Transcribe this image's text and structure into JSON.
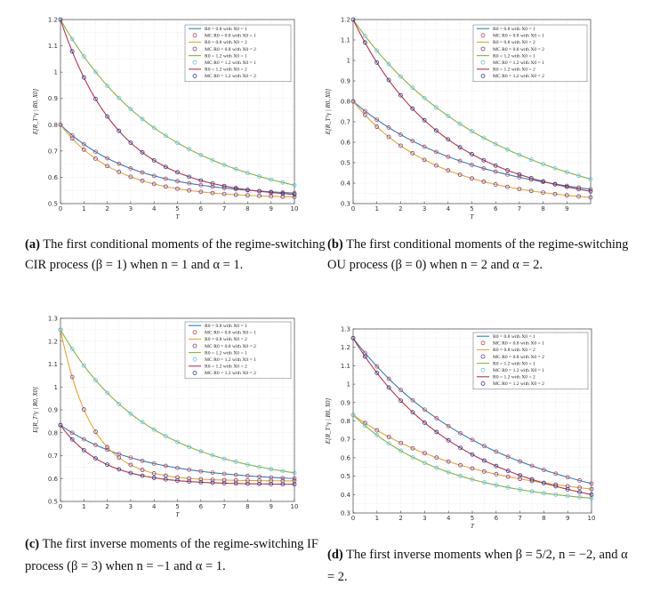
{
  "figure": {
    "colors": {
      "blue": "#2f7ec0",
      "orange": "#e6a531",
      "green": "#86b33f",
      "purple": "#7a3a8f",
      "cyan": "#5cc5e0",
      "crimson": "#b5334a",
      "navy": "#263a8a",
      "red_marker": "#c8444e",
      "grid": "#e3e3e3"
    },
    "legend": [
      "R0 = 0.8 with X0 = 1",
      "MC R0 = 0.8 with X0 = 1",
      "R0 = 0.8 with X0 = 2",
      "MC R0 = 0.8 with X0 = 2",
      "R0 = 1.2 with X0 = 1",
      "MC R0 = 1.2 with X0 = 1",
      "R0 = 1.2 with X0 = 2",
      "MC R0 = 1.2 with X0 = 2"
    ]
  },
  "chart_data": [
    {
      "panel": "a",
      "type": "line",
      "xlabel": "T",
      "ylabel": "E[R_T^γ | R0, X0]",
      "xlim": [
        0,
        10
      ],
      "ylim": [
        0.5,
        1.2
      ],
      "xticks": [
        0,
        1,
        2,
        3,
        4,
        5,
        6,
        7,
        8,
        9,
        10
      ],
      "yticks": [
        0.5,
        0.6,
        0.7,
        0.8,
        0.9,
        1,
        1.1,
        1.2
      ],
      "series": [
        {
          "name": "R0 = 0.8 with X0 = 1",
          "start": 0.8,
          "end": 0.54,
          "k": 0.33
        },
        {
          "name": "R0 = 0.8 with X0 = 2",
          "start": 0.8,
          "end": 0.525,
          "k": 0.42
        },
        {
          "name": "R0 = 1.2 with X0 = 1",
          "start": 1.2,
          "end": 0.57,
          "k": 0.24
        },
        {
          "name": "R0 = 1.2 with X0 = 2",
          "start": 1.2,
          "end": 0.535,
          "k": 0.4
        }
      ],
      "caption_label": "(a)",
      "caption_text": "The first conditional moments of the regime-switching CIR process (β = 1) when n = 1 and α = 1."
    },
    {
      "panel": "b",
      "type": "line",
      "xlabel": "T",
      "ylabel": "E[R_T^γ | R0, X0]",
      "xlim": [
        0,
        10
      ],
      "ylim": [
        0.3,
        1.2
      ],
      "xticks": [
        0,
        1,
        2,
        3,
        4,
        5,
        6,
        7,
        8,
        9
      ],
      "yticks": [
        0.3,
        0.4,
        0.5,
        0.6,
        0.7,
        0.8,
        0.9,
        1,
        1.1,
        1.2
      ],
      "series": [
        {
          "name": "R0 = 0.8 with X0 = 1",
          "start": 0.8,
          "end": 0.37,
          "k": 0.22
        },
        {
          "name": "R0 = 0.8 with X0 = 2",
          "start": 0.8,
          "end": 0.33,
          "k": 0.3
        },
        {
          "name": "R0 = 1.2 with X0 = 1",
          "start": 1.2,
          "end": 0.42,
          "k": 0.2
        },
        {
          "name": "R0 = 1.2 with X0 = 2",
          "start": 1.2,
          "end": 0.36,
          "k": 0.28
        }
      ],
      "caption_label": "(b)",
      "caption_text": "The first conditional moments of the regime-switching OU process (β = 0) when n = 2 and α = 2."
    },
    {
      "panel": "c",
      "type": "line",
      "xlabel": "T",
      "ylabel": "E[R_T^γ | R0, X0]",
      "xlim": [
        0,
        10
      ],
      "ylim": [
        0.5,
        1.3
      ],
      "xticks": [
        0,
        1,
        2,
        3,
        4,
        5,
        6,
        7,
        8,
        9,
        10
      ],
      "yticks": [
        0.5,
        0.6,
        0.7,
        0.8,
        0.9,
        1,
        1.1,
        1.2,
        1.3
      ],
      "series": [
        {
          "name": "R0 = 0.8 with X0 = 1",
          "start": 0.833,
          "end": 0.6,
          "k": 0.3
        },
        {
          "name": "R0 = 0.8 with X0 = 2",
          "start": 1.25,
          "end": 0.59,
          "k": 0.75
        },
        {
          "name": "R0 = 1.2 with X0 = 1",
          "start": 1.25,
          "end": 0.625,
          "k": 0.28
        },
        {
          "name": "R0 = 1.2 with X0 = 2",
          "start": 0.833,
          "end": 0.575,
          "k": 0.55
        }
      ],
      "caption_label": "(c)",
      "caption_text_1": "The first inverse moments of the regime-switching IF",
      "caption_text_2": "process (β = 3) when n = −1 and α = 1."
    },
    {
      "panel": "d",
      "type": "line",
      "xlabel": "T",
      "ylabel": "E[R_T^γ | R0, X0]",
      "xlim": [
        0,
        10
      ],
      "ylim": [
        0.3,
        1.3
      ],
      "xticks": [
        0,
        1,
        2,
        3,
        4,
        5,
        6,
        7,
        8,
        9,
        10
      ],
      "yticks": [
        0.3,
        0.4,
        0.5,
        0.6,
        0.7,
        0.8,
        0.9,
        1,
        1.1,
        1.2,
        1.3
      ],
      "series": [
        {
          "name": "R0 = 0.8 with X0 = 1",
          "start": 1.25,
          "end": 0.46,
          "k": 0.2
        },
        {
          "name": "R0 = 0.8 with X0 = 2",
          "start": 0.833,
          "end": 0.43,
          "k": 0.22
        },
        {
          "name": "R0 = 1.2 with X0 = 1",
          "start": 0.833,
          "end": 0.38,
          "k": 0.27
        },
        {
          "name": "R0 = 1.2 with X0 = 2",
          "start": 1.25,
          "end": 0.4,
          "k": 0.24
        }
      ],
      "caption_label": "(d)",
      "caption_text": "The first inverse moments when β = 5/2, n = −2, and α = 2."
    }
  ]
}
